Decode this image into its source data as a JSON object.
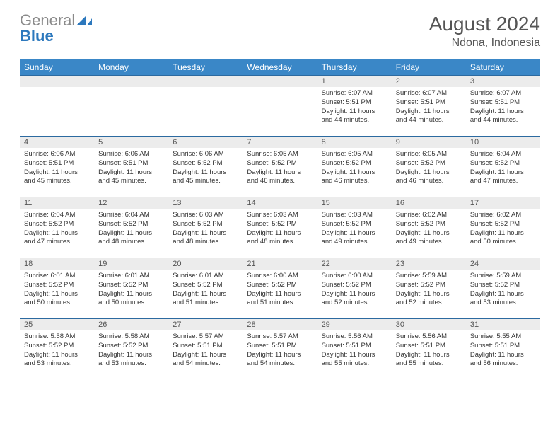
{
  "brand": {
    "word1": "General",
    "word2": "Blue",
    "triangle_color": "#2c78bd"
  },
  "title": "August 2024",
  "location": "Ndona, Indonesia",
  "colors": {
    "header_bg": "#3a87c7",
    "header_text": "#ffffff",
    "row_divider": "#2c6aa0",
    "daynum_bg": "#ececec",
    "text": "#333333",
    "title_text": "#555555",
    "background": "#ffffff"
  },
  "day_labels": [
    "Sunday",
    "Monday",
    "Tuesday",
    "Wednesday",
    "Thursday",
    "Friday",
    "Saturday"
  ],
  "weeks": [
    [
      {
        "n": "",
        "sunrise": "",
        "sunset": "",
        "daylight": ""
      },
      {
        "n": "",
        "sunrise": "",
        "sunset": "",
        "daylight": ""
      },
      {
        "n": "",
        "sunrise": "",
        "sunset": "",
        "daylight": ""
      },
      {
        "n": "",
        "sunrise": "",
        "sunset": "",
        "daylight": ""
      },
      {
        "n": "1",
        "sunrise": "6:07 AM",
        "sunset": "5:51 PM",
        "daylight": "11 hours and 44 minutes."
      },
      {
        "n": "2",
        "sunrise": "6:07 AM",
        "sunset": "5:51 PM",
        "daylight": "11 hours and 44 minutes."
      },
      {
        "n": "3",
        "sunrise": "6:07 AM",
        "sunset": "5:51 PM",
        "daylight": "11 hours and 44 minutes."
      }
    ],
    [
      {
        "n": "4",
        "sunrise": "6:06 AM",
        "sunset": "5:51 PM",
        "daylight": "11 hours and 45 minutes."
      },
      {
        "n": "5",
        "sunrise": "6:06 AM",
        "sunset": "5:51 PM",
        "daylight": "11 hours and 45 minutes."
      },
      {
        "n": "6",
        "sunrise": "6:06 AM",
        "sunset": "5:52 PM",
        "daylight": "11 hours and 45 minutes."
      },
      {
        "n": "7",
        "sunrise": "6:05 AM",
        "sunset": "5:52 PM",
        "daylight": "11 hours and 46 minutes."
      },
      {
        "n": "8",
        "sunrise": "6:05 AM",
        "sunset": "5:52 PM",
        "daylight": "11 hours and 46 minutes."
      },
      {
        "n": "9",
        "sunrise": "6:05 AM",
        "sunset": "5:52 PM",
        "daylight": "11 hours and 46 minutes."
      },
      {
        "n": "10",
        "sunrise": "6:04 AM",
        "sunset": "5:52 PM",
        "daylight": "11 hours and 47 minutes."
      }
    ],
    [
      {
        "n": "11",
        "sunrise": "6:04 AM",
        "sunset": "5:52 PM",
        "daylight": "11 hours and 47 minutes."
      },
      {
        "n": "12",
        "sunrise": "6:04 AM",
        "sunset": "5:52 PM",
        "daylight": "11 hours and 48 minutes."
      },
      {
        "n": "13",
        "sunrise": "6:03 AM",
        "sunset": "5:52 PM",
        "daylight": "11 hours and 48 minutes."
      },
      {
        "n": "14",
        "sunrise": "6:03 AM",
        "sunset": "5:52 PM",
        "daylight": "11 hours and 48 minutes."
      },
      {
        "n": "15",
        "sunrise": "6:03 AM",
        "sunset": "5:52 PM",
        "daylight": "11 hours and 49 minutes."
      },
      {
        "n": "16",
        "sunrise": "6:02 AM",
        "sunset": "5:52 PM",
        "daylight": "11 hours and 49 minutes."
      },
      {
        "n": "17",
        "sunrise": "6:02 AM",
        "sunset": "5:52 PM",
        "daylight": "11 hours and 50 minutes."
      }
    ],
    [
      {
        "n": "18",
        "sunrise": "6:01 AM",
        "sunset": "5:52 PM",
        "daylight": "11 hours and 50 minutes."
      },
      {
        "n": "19",
        "sunrise": "6:01 AM",
        "sunset": "5:52 PM",
        "daylight": "11 hours and 50 minutes."
      },
      {
        "n": "20",
        "sunrise": "6:01 AM",
        "sunset": "5:52 PM",
        "daylight": "11 hours and 51 minutes."
      },
      {
        "n": "21",
        "sunrise": "6:00 AM",
        "sunset": "5:52 PM",
        "daylight": "11 hours and 51 minutes."
      },
      {
        "n": "22",
        "sunrise": "6:00 AM",
        "sunset": "5:52 PM",
        "daylight": "11 hours and 52 minutes."
      },
      {
        "n": "23",
        "sunrise": "5:59 AM",
        "sunset": "5:52 PM",
        "daylight": "11 hours and 52 minutes."
      },
      {
        "n": "24",
        "sunrise": "5:59 AM",
        "sunset": "5:52 PM",
        "daylight": "11 hours and 53 minutes."
      }
    ],
    [
      {
        "n": "25",
        "sunrise": "5:58 AM",
        "sunset": "5:52 PM",
        "daylight": "11 hours and 53 minutes."
      },
      {
        "n": "26",
        "sunrise": "5:58 AM",
        "sunset": "5:52 PM",
        "daylight": "11 hours and 53 minutes."
      },
      {
        "n": "27",
        "sunrise": "5:57 AM",
        "sunset": "5:51 PM",
        "daylight": "11 hours and 54 minutes."
      },
      {
        "n": "28",
        "sunrise": "5:57 AM",
        "sunset": "5:51 PM",
        "daylight": "11 hours and 54 minutes."
      },
      {
        "n": "29",
        "sunrise": "5:56 AM",
        "sunset": "5:51 PM",
        "daylight": "11 hours and 55 minutes."
      },
      {
        "n": "30",
        "sunrise": "5:56 AM",
        "sunset": "5:51 PM",
        "daylight": "11 hours and 55 minutes."
      },
      {
        "n": "31",
        "sunrise": "5:55 AM",
        "sunset": "5:51 PM",
        "daylight": "11 hours and 56 minutes."
      }
    ]
  ],
  "labels": {
    "sunrise_prefix": "Sunrise: ",
    "sunset_prefix": "Sunset: ",
    "daylight_prefix": "Daylight: "
  }
}
